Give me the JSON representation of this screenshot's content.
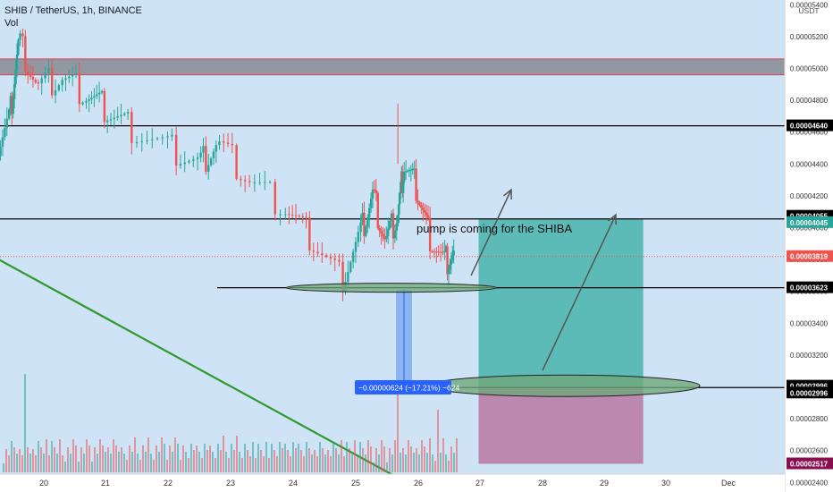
{
  "header": {
    "symbol": "SHIB / TetherUS, 1h, BINANCE",
    "volume_label": "Vol",
    "currency": "USDT"
  },
  "colors": {
    "background": "#cfe3f6",
    "axis_background": "#ffffff",
    "up_candle": "#26a69a",
    "down_candle": "#ef5350",
    "trend_line": "#2e9a2e",
    "zone_fill": "#8a8f99",
    "zone_border": "#e04050",
    "target_fill": "#3fb0a8",
    "stop_fill": "#b56a98",
    "ellipse_fill": "#6fa87a",
    "measure_fill": "#7aa9ef",
    "measure_label_bg": "#2962ff"
  },
  "annotation_text": "pump is coming for the SHIBA",
  "measure_label": "−0.00000624 (−17.21%) −624",
  "chart_data": {
    "type": "candlestick",
    "title": "SHIB / TetherUS, 1h, BINANCE",
    "y_unit": "USDT",
    "x_tick_labels": [
      "20",
      "21",
      "22",
      "23",
      "24",
      "25",
      "26",
      "27",
      "28",
      "29",
      "30",
      "Dec"
    ],
    "y_tick_labels": [
      "0.00005400",
      "0.00005200",
      "0.00005000",
      "0.00004800",
      "0.00004600",
      "0.00004400",
      "0.00004200",
      "0.00004000",
      "0.00003800",
      "0.00003600",
      "0.00003400",
      "0.00003200",
      "0.00003000",
      "0.00002800",
      "0.00002600",
      "0.00002400"
    ],
    "y_ticks": [
      5.4e-05,
      5.2e-05,
      5e-05,
      4.8e-05,
      4.6e-05,
      4.4e-05,
      4.2e-05,
      4e-05,
      3.8e-05,
      3.6e-05,
      3.4e-05,
      3.2e-05,
      3e-05,
      2.8e-05,
      2.6e-05,
      2.4e-05
    ],
    "ylim": [
      2.34e-05,
      5.43e-05
    ],
    "grid": false,
    "series": [
      {
        "key": "p1",
        "x": 19.2,
        "y": 4.43e-05
      },
      {
        "key": "p2",
        "x": 19.45,
        "y": 4.68e-05
      },
      {
        "key": "p3",
        "x": 19.6,
        "y": 5.18e-05
      },
      {
        "key": "p4",
        "x": 19.9,
        "y": 4.88e-05
      },
      {
        "key": "p5",
        "x": 20.3,
        "y": 4.94e-05
      },
      {
        "key": "p6",
        "x": 20.7,
        "y": 4.84e-05
      },
      {
        "key": "p7",
        "x": 21.0,
        "y": 4.74e-05
      },
      {
        "key": "p8",
        "x": 21.4,
        "y": 4.63e-05
      },
      {
        "key": "p9",
        "x": 22.0,
        "y": 4.5e-05
      },
      {
        "key": "p10",
        "x": 22.5,
        "y": 4.4e-05
      },
      {
        "key": "p11",
        "x": 22.8,
        "y": 4.53e-05
      },
      {
        "key": "p12",
        "x": 23.3,
        "y": 4.3e-05
      },
      {
        "key": "p13",
        "x": 23.9,
        "y": 4.13e-05
      },
      {
        "key": "p14",
        "x": 24.3,
        "y": 3.93e-05
      },
      {
        "key": "p15",
        "x": 24.8,
        "y": 3.68e-05
      },
      {
        "key": "p16",
        "x": 25.1,
        "y": 3.96e-05
      },
      {
        "key": "p17",
        "x": 25.3,
        "y": 4.21e-05
      },
      {
        "key": "p18",
        "x": 25.5,
        "y": 3.91e-05
      },
      {
        "key": "p19",
        "x": 25.7,
        "y": 4.08e-05
      },
      {
        "key": "p20",
        "x": 25.8,
        "y": 4.4e-05
      },
      {
        "key": "p21",
        "x": 26.0,
        "y": 4.25e-05
      },
      {
        "key": "p22",
        "x": 26.2,
        "y": 3.96e-05
      },
      {
        "key": "p23",
        "x": 26.45,
        "y": 3.78e-05
      },
      {
        "key": "p24",
        "x": 26.6,
        "y": 3.82e-05
      }
    ],
    "spike_high": {
      "x": 25.7,
      "y": 4.78e-05
    },
    "volume_spikes": [
      19.6,
      25.72,
      26.3
    ],
    "levels": [
      {
        "name": "resistance-1",
        "y": 4.64e-05
      },
      {
        "name": "resistance-2",
        "y": 4.055e-05
      },
      {
        "name": "support",
        "y": 3.623e-05
      },
      {
        "name": "target-low",
        "y": 2.996e-05
      }
    ],
    "price_labels": [
      {
        "text": "0.00004640",
        "y": 4.64e-05,
        "bg": "#000000"
      },
      {
        "text": "0.00004055",
        "y": 4.072e-05,
        "bg": "#000000"
      },
      {
        "text": "0.00004045",
        "y": 4.032e-05,
        "bg": "#26a69a"
      },
      {
        "text": "0.00003819",
        "y": 3.819e-05,
        "bg": "#ef5350"
      },
      {
        "text": "0.00003623",
        "y": 3.623e-05,
        "bg": "#000000"
      },
      {
        "text": "0.00002996",
        "y": 3.005e-05,
        "bg": "#000000"
      },
      {
        "text": "0.00002996",
        "y": 2.962e-05,
        "bg": "#000000"
      },
      {
        "text": "0.00002517",
        "y": 2.517e-05,
        "bg": "#880e4f"
      }
    ],
    "current_price": 3.819e-05,
    "zone": [
      4.96e-05,
      5.06e-05
    ],
    "long_position": {
      "x_start": 27.0,
      "x_end": 29.65,
      "entry": 2.996e-05,
      "target": 4.055e-05,
      "stop": 2.517e-05
    },
    "trend_line": {
      "x1": 18.9,
      "y1": 3.88e-05,
      "x2": 27.0,
      "y2": 2.4e-05
    }
  }
}
